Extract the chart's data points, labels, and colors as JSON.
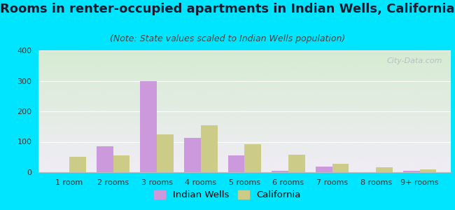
{
  "title": "Rooms in renter-occupied apartments in Indian Wells, California",
  "subtitle": "(Note: State values scaled to Indian Wells population)",
  "categories": [
    "1 room",
    "2 rooms",
    "3 rooms",
    "4 rooms",
    "5 rooms",
    "6 rooms",
    "7 rooms",
    "8 rooms",
    "9+ rooms"
  ],
  "indian_wells": [
    0,
    85,
    300,
    112,
    55,
    5,
    18,
    0,
    5
  ],
  "california": [
    50,
    55,
    125,
    155,
    93,
    57,
    27,
    15,
    10
  ],
  "iw_color": "#cc99dd",
  "ca_color": "#cccc88",
  "bg_color": "#00e5ff",
  "gradient_top": "#d6ecd2",
  "gradient_bottom": "#f0ecf5",
  "ylim": [
    0,
    400
  ],
  "yticks": [
    0,
    100,
    200,
    300,
    400
  ],
  "bar_width": 0.38,
  "title_fontsize": 13,
  "subtitle_fontsize": 9,
  "tick_fontsize": 8,
  "watermark": "City-Data.com"
}
